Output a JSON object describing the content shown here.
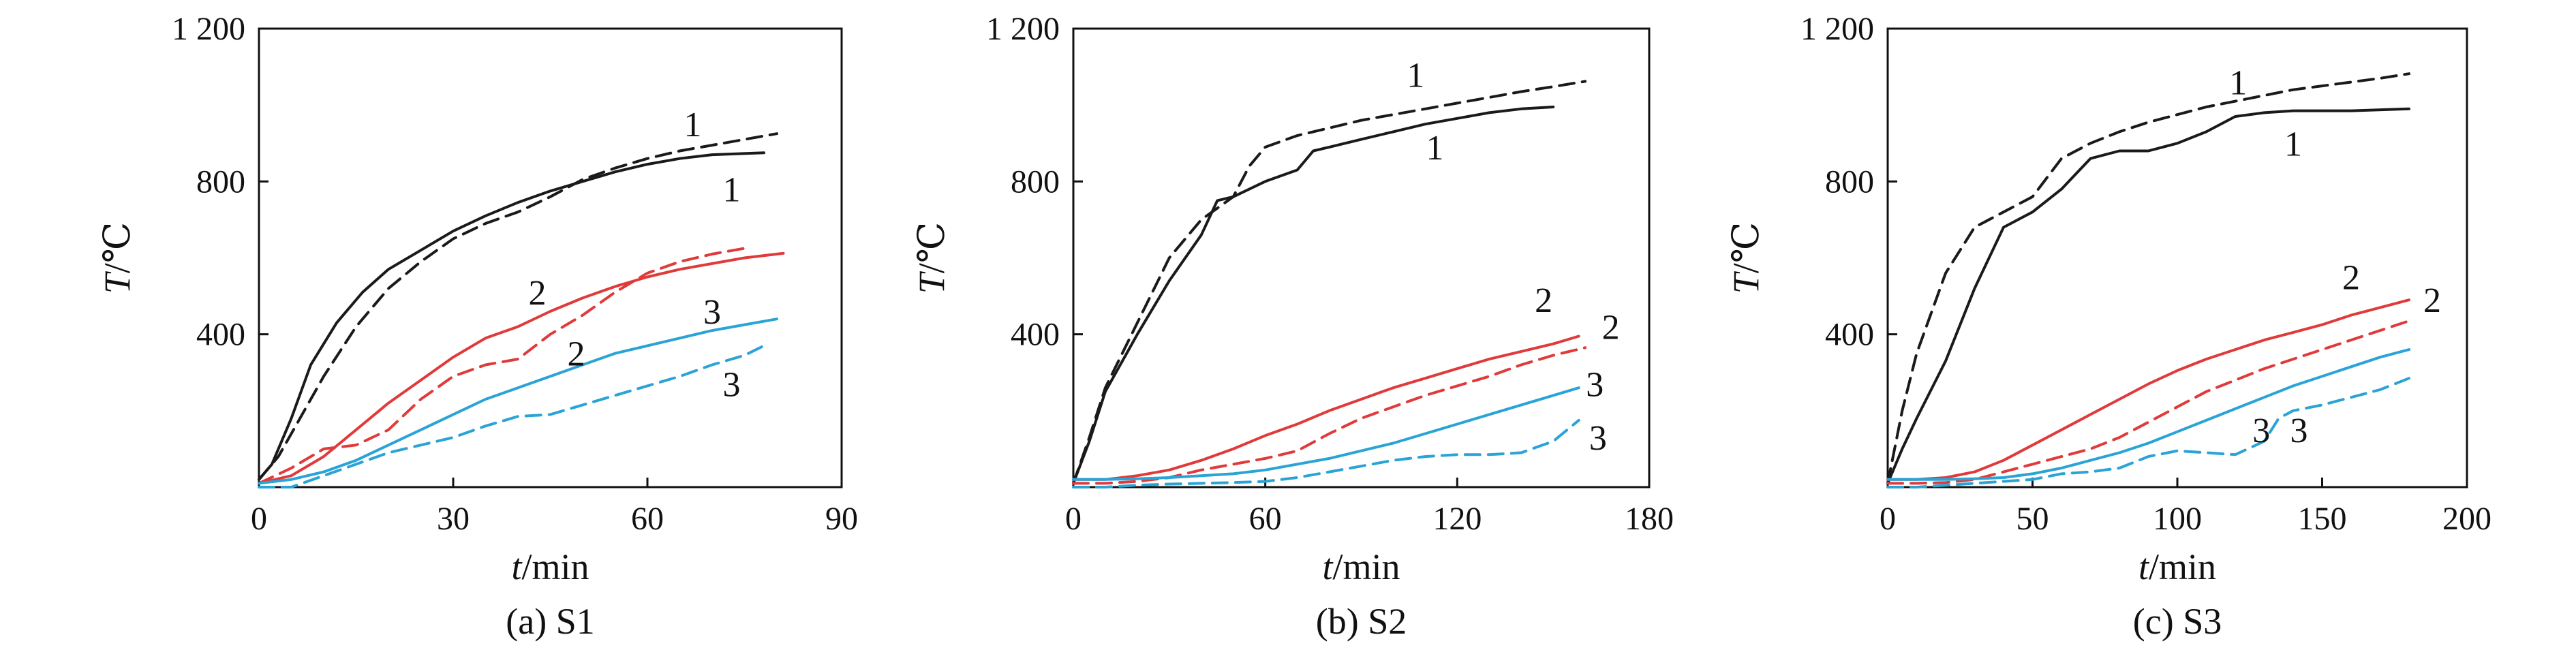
{
  "colors": {
    "curve_1": "#1a1a1a",
    "curve_2": "#e03a3a",
    "curve_3": "#2aa3d6",
    "axis": "#111111"
  },
  "chart_data": [
    {
      "type": "line",
      "caption": "(a) S1",
      "xlabel": "t/min",
      "ylabel": "T/℃",
      "xlim": [
        0,
        90
      ],
      "ylim": [
        0,
        1200
      ],
      "xticks": [
        0,
        30,
        60,
        90
      ],
      "xtick_labels": [
        "0",
        "30",
        "60",
        "90"
      ],
      "yticks": [
        400,
        800,
        1200
      ],
      "ytick_labels": [
        "400",
        "800",
        "1 200"
      ],
      "grid": false,
      "series": [
        {
          "label": "1",
          "style": "solid",
          "color_key": "curve_1",
          "x": [
            0,
            2,
            5,
            8,
            12,
            16,
            20,
            25,
            30,
            35,
            40,
            45,
            50,
            55,
            60,
            65,
            70,
            78
          ],
          "y": [
            20,
            60,
            180,
            320,
            430,
            510,
            570,
            620,
            670,
            710,
            745,
            775,
            800,
            825,
            845,
            860,
            870,
            875
          ]
        },
        {
          "label": "1",
          "style": "dashed",
          "color_key": "curve_1",
          "x": [
            0,
            3,
            6,
            10,
            15,
            20,
            25,
            30,
            35,
            40,
            45,
            50,
            55,
            60,
            65,
            70,
            75,
            80
          ],
          "y": [
            20,
            80,
            170,
            290,
            420,
            520,
            590,
            650,
            690,
            720,
            760,
            805,
            835,
            860,
            880,
            895,
            910,
            925
          ]
        },
        {
          "label": "2",
          "style": "solid",
          "color_key": "curve_2",
          "x": [
            0,
            5,
            10,
            15,
            20,
            25,
            30,
            35,
            40,
            45,
            50,
            55,
            60,
            65,
            70,
            75,
            81
          ],
          "y": [
            10,
            30,
            80,
            150,
            220,
            280,
            340,
            390,
            420,
            460,
            495,
            525,
            550,
            570,
            585,
            600,
            612
          ]
        },
        {
          "label": "2",
          "style": "dashed",
          "color_key": "curve_2",
          "x": [
            0,
            5,
            10,
            15,
            20,
            25,
            30,
            35,
            40,
            45,
            50,
            55,
            60,
            65,
            70,
            75
          ],
          "y": [
            10,
            50,
            100,
            110,
            150,
            230,
            290,
            320,
            335,
            400,
            450,
            510,
            560,
            590,
            610,
            625
          ]
        },
        {
          "label": "3",
          "style": "solid",
          "color_key": "curve_3",
          "x": [
            0,
            5,
            10,
            15,
            20,
            25,
            30,
            35,
            40,
            45,
            50,
            55,
            60,
            65,
            70,
            75,
            80
          ],
          "y": [
            10,
            20,
            40,
            70,
            110,
            150,
            190,
            230,
            260,
            290,
            320,
            350,
            370,
            390,
            410,
            425,
            440
          ]
        },
        {
          "label": "3",
          "style": "dashed",
          "color_key": "curve_3",
          "x": [
            0,
            5,
            10,
            15,
            20,
            25,
            30,
            35,
            40,
            45,
            50,
            55,
            60,
            65,
            70,
            75,
            78
          ],
          "y": [
            0,
            0,
            30,
            60,
            90,
            110,
            130,
            160,
            185,
            190,
            215,
            240,
            265,
            290,
            320,
            345,
            370
          ]
        }
      ],
      "annotations": [
        {
          "text": "1",
          "x": 67,
          "y": 950
        },
        {
          "text": "1",
          "x": 73,
          "y": 780
        },
        {
          "text": "2",
          "x": 43,
          "y": 510
        },
        {
          "text": "2",
          "x": 49,
          "y": 350
        },
        {
          "text": "3",
          "x": 70,
          "y": 460
        },
        {
          "text": "3",
          "x": 73,
          "y": 270
        }
      ]
    },
    {
      "type": "line",
      "caption": "(b) S2",
      "xlabel": "t/min",
      "ylabel": "T/℃",
      "xlim": [
        0,
        180
      ],
      "ylim": [
        0,
        1200
      ],
      "xticks": [
        0,
        60,
        120,
        180
      ],
      "xtick_labels": [
        "0",
        "60",
        "120",
        "180"
      ],
      "yticks": [
        400,
        800,
        1200
      ],
      "ytick_labels": [
        "400",
        "800",
        "1 200"
      ],
      "grid": false,
      "series": [
        {
          "label": "1",
          "style": "solid",
          "color_key": "curve_1",
          "x": [
            0,
            5,
            10,
            20,
            30,
            40,
            45,
            50,
            60,
            70,
            75,
            80,
            90,
            100,
            110,
            120,
            130,
            140,
            150
          ],
          "y": [
            10,
            120,
            250,
            400,
            540,
            660,
            750,
            760,
            800,
            830,
            880,
            890,
            910,
            930,
            950,
            965,
            980,
            990,
            995
          ]
        },
        {
          "label": "1",
          "style": "dashed",
          "color_key": "curve_1",
          "x": [
            0,
            5,
            10,
            20,
            30,
            40,
            50,
            55,
            60,
            70,
            80,
            90,
            100,
            110,
            120,
            130,
            140,
            150,
            160
          ],
          "y": [
            10,
            130,
            260,
            430,
            600,
            700,
            760,
            840,
            890,
            920,
            940,
            960,
            975,
            990,
            1005,
            1020,
            1035,
            1048,
            1062
          ]
        },
        {
          "label": "2",
          "style": "solid",
          "color_key": "curve_2",
          "x": [
            0,
            10,
            20,
            30,
            40,
            50,
            60,
            70,
            80,
            90,
            100,
            110,
            120,
            130,
            140,
            150,
            158
          ],
          "y": [
            20,
            20,
            30,
            45,
            70,
            100,
            135,
            165,
            200,
            230,
            260,
            285,
            310,
            335,
            355,
            375,
            395
          ]
        },
        {
          "label": "2",
          "style": "dashed",
          "color_key": "curve_2",
          "x": [
            0,
            10,
            20,
            30,
            40,
            50,
            60,
            70,
            80,
            90,
            100,
            110,
            120,
            130,
            140,
            150,
            160
          ],
          "y": [
            10,
            10,
            15,
            25,
            45,
            60,
            75,
            95,
            140,
            180,
            210,
            240,
            265,
            290,
            320,
            345,
            365
          ]
        },
        {
          "label": "3",
          "style": "solid",
          "color_key": "curve_3",
          "x": [
            0,
            10,
            20,
            30,
            40,
            50,
            60,
            70,
            80,
            90,
            100,
            110,
            120,
            130,
            140,
            150,
            158
          ],
          "y": [
            20,
            20,
            22,
            25,
            30,
            35,
            45,
            60,
            75,
            95,
            115,
            140,
            165,
            190,
            215,
            240,
            260
          ]
        },
        {
          "label": "3",
          "style": "dashed",
          "color_key": "curve_3",
          "x": [
            0,
            10,
            20,
            30,
            40,
            50,
            60,
            70,
            80,
            90,
            100,
            110,
            120,
            130,
            140,
            150,
            158
          ],
          "y": [
            0,
            0,
            5,
            8,
            10,
            12,
            15,
            25,
            40,
            55,
            70,
            80,
            85,
            85,
            90,
            120,
            175
          ]
        }
      ],
      "annotations": [
        {
          "text": "1",
          "x": 107,
          "y": 1080
        },
        {
          "text": "1",
          "x": 113,
          "y": 890
        },
        {
          "text": "2",
          "x": 147,
          "y": 490
        },
        {
          "text": "2",
          "x": 168,
          "y": 420
        },
        {
          "text": "3",
          "x": 163,
          "y": 270
        },
        {
          "text": "3",
          "x": 164,
          "y": 130
        }
      ]
    },
    {
      "type": "line",
      "caption": "(c) S3",
      "xlabel": "t/min",
      "ylabel": "T/℃",
      "xlim": [
        0,
        200
      ],
      "ylim": [
        0,
        1200
      ],
      "xticks": [
        0,
        50,
        100,
        150,
        200
      ],
      "xtick_labels": [
        "0",
        "50",
        "100",
        "150",
        "200"
      ],
      "yticks": [
        400,
        800,
        1200
      ],
      "ytick_labels": [
        "400",
        "800",
        "1 200"
      ],
      "grid": false,
      "series": [
        {
          "label": "1",
          "style": "solid",
          "color_key": "curve_1",
          "x": [
            0,
            5,
            10,
            20,
            30,
            40,
            45,
            50,
            60,
            70,
            80,
            90,
            100,
            110,
            120,
            130,
            140,
            160,
            180
          ],
          "y": [
            10,
            100,
            180,
            330,
            520,
            680,
            700,
            720,
            780,
            860,
            880,
            880,
            900,
            930,
            970,
            980,
            985,
            985,
            990
          ]
        },
        {
          "label": "1",
          "style": "dashed",
          "color_key": "curve_1",
          "x": [
            0,
            5,
            10,
            20,
            30,
            40,
            50,
            60,
            70,
            80,
            90,
            100,
            110,
            120,
            130,
            140,
            150,
            160,
            170,
            180
          ],
          "y": [
            10,
            200,
            350,
            560,
            680,
            720,
            760,
            860,
            900,
            930,
            955,
            975,
            995,
            1010,
            1025,
            1040,
            1050,
            1060,
            1070,
            1082
          ]
        },
        {
          "label": "2",
          "style": "solid",
          "color_key": "curve_2",
          "x": [
            0,
            10,
            20,
            30,
            40,
            50,
            60,
            70,
            80,
            90,
            100,
            110,
            120,
            130,
            140,
            150,
            160,
            170,
            180
          ],
          "y": [
            20,
            20,
            25,
            40,
            70,
            110,
            150,
            190,
            230,
            270,
            305,
            335,
            360,
            385,
            405,
            425,
            450,
            470,
            490
          ]
        },
        {
          "label": "2",
          "style": "dashed",
          "color_key": "curve_2",
          "x": [
            0,
            10,
            20,
            30,
            40,
            50,
            60,
            70,
            80,
            90,
            100,
            110,
            120,
            130,
            140,
            150,
            160,
            170,
            180
          ],
          "y": [
            10,
            10,
            12,
            20,
            40,
            60,
            80,
            100,
            130,
            170,
            210,
            250,
            280,
            310,
            335,
            360,
            385,
            410,
            435
          ]
        },
        {
          "label": "3",
          "style": "solid",
          "color_key": "curve_3",
          "x": [
            0,
            10,
            20,
            30,
            40,
            50,
            60,
            70,
            80,
            90,
            100,
            110,
            120,
            130,
            140,
            150,
            160,
            170,
            180
          ],
          "y": [
            20,
            20,
            20,
            22,
            25,
            35,
            50,
            70,
            90,
            115,
            145,
            175,
            205,
            235,
            265,
            290,
            315,
            340,
            360
          ]
        },
        {
          "label": "3",
          "style": "dashed",
          "color_key": "curve_3",
          "x": [
            0,
            10,
            20,
            30,
            40,
            50,
            60,
            70,
            80,
            90,
            100,
            110,
            120,
            130,
            135,
            140,
            150,
            160,
            170,
            180
          ],
          "y": [
            0,
            0,
            5,
            10,
            15,
            20,
            35,
            40,
            50,
            80,
            95,
            90,
            85,
            120,
            180,
            200,
            215,
            235,
            255,
            285
          ]
        }
      ],
      "annotations": [
        {
          "text": "1",
          "x": 121,
          "y": 1060
        },
        {
          "text": "1",
          "x": 140,
          "y": 900
        },
        {
          "text": "2",
          "x": 160,
          "y": 550
        },
        {
          "text": "2",
          "x": 188,
          "y": 490
        },
        {
          "text": "3",
          "x": 129,
          "y": 150
        },
        {
          "text": "3",
          "x": 142,
          "y": 150
        }
      ]
    }
  ]
}
